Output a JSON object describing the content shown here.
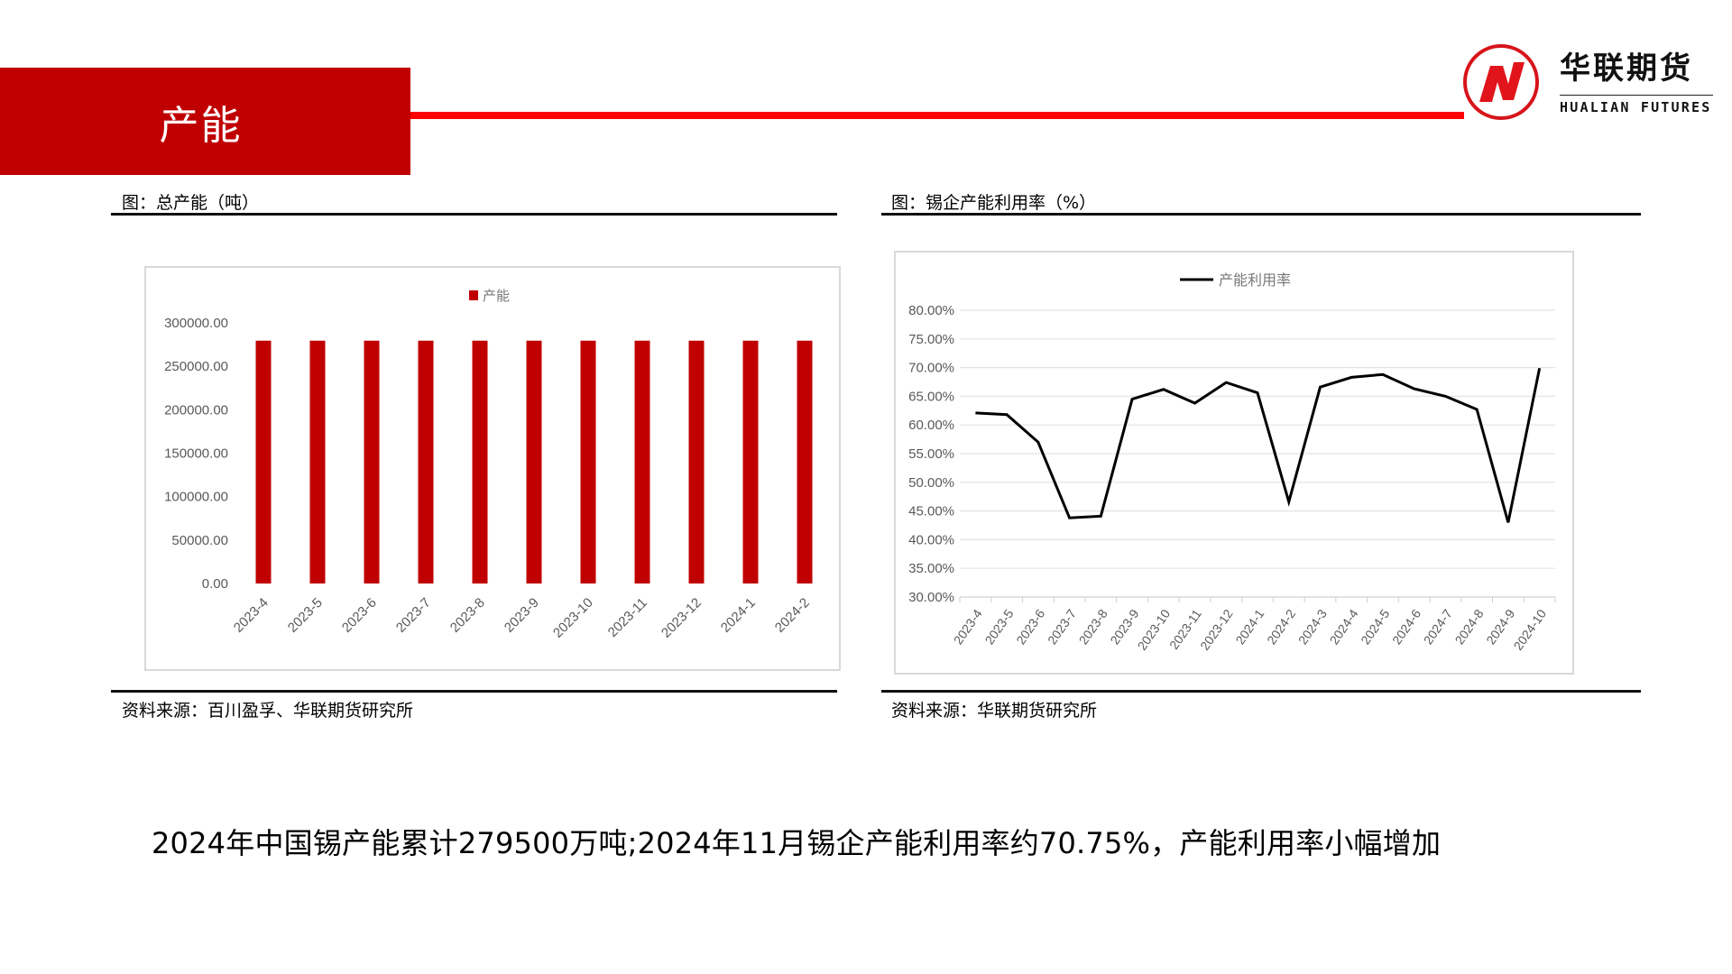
{
  "header": {
    "title": "产能",
    "accent_block_color": "#C00000",
    "accent_line_color": "#FF0000"
  },
  "logo": {
    "cn": "华联期货",
    "en": "HUALIAN FUTURES",
    "icon": "hualian-n-logo-icon",
    "color": "#D7141A"
  },
  "left_panel": {
    "fig_title": "图：总产能（吨）",
    "source": "资料来源：百川盈孚、华联期货研究所"
  },
  "right_panel": {
    "fig_title": "图：锡企产能利用率（%）",
    "source": "资料来源：华联期货研究所"
  },
  "summary": "2024年中国锡产能累计279500万吨;2024年11月锡企产能利用率约70.75%，产能利用率小幅增加",
  "chart_data": [
    {
      "type": "bar",
      "title": "",
      "legend": [
        "产能"
      ],
      "legend_position": "top",
      "categories": [
        "2023-4",
        "2023-5",
        "2023-6",
        "2023-7",
        "2023-8",
        "2023-9",
        "2023-10",
        "2023-11",
        "2023-12",
        "2024-1",
        "2024-2"
      ],
      "series": [
        {
          "name": "产能",
          "color": "#C00000",
          "values": [
            279500,
            279500,
            279500,
            279500,
            279500,
            279500,
            279500,
            279500,
            279500,
            279500,
            279500
          ]
        }
      ],
      "yticks": [
        "0.00",
        "50000.00",
        "100000.00",
        "150000.00",
        "200000.00",
        "250000.00",
        "300000.00"
      ],
      "ylim": [
        0,
        300000
      ],
      "grid": false,
      "xlabel": "",
      "ylabel": ""
    },
    {
      "type": "line",
      "title": "",
      "legend": [
        "产能利用率"
      ],
      "legend_position": "top",
      "categories": [
        "2023-4",
        "2023-5",
        "2023-6",
        "2023-7",
        "2023-8",
        "2023-9",
        "2023-10",
        "2023-11",
        "2023-12",
        "2024-1",
        "2024-2",
        "2024-3",
        "2024-4",
        "2024-5",
        "2024-6",
        "2024-7",
        "2024-8",
        "2024-9",
        "2024-10"
      ],
      "series": [
        {
          "name": "产能利用率",
          "color": "#000000",
          "values": [
            62.1,
            61.8,
            57.0,
            43.8,
            44.1,
            64.5,
            66.2,
            63.8,
            67.4,
            65.6,
            46.6,
            66.6,
            68.3,
            68.8,
            66.3,
            65.0,
            62.7,
            43.0,
            69.9
          ]
        }
      ],
      "yticks": [
        "30.00%",
        "35.00%",
        "40.00%",
        "45.00%",
        "50.00%",
        "55.00%",
        "60.00%",
        "65.00%",
        "70.00%",
        "75.00%",
        "80.00%"
      ],
      "ylim": [
        30,
        80
      ],
      "grid": true,
      "xlabel": "",
      "ylabel": ""
    }
  ]
}
